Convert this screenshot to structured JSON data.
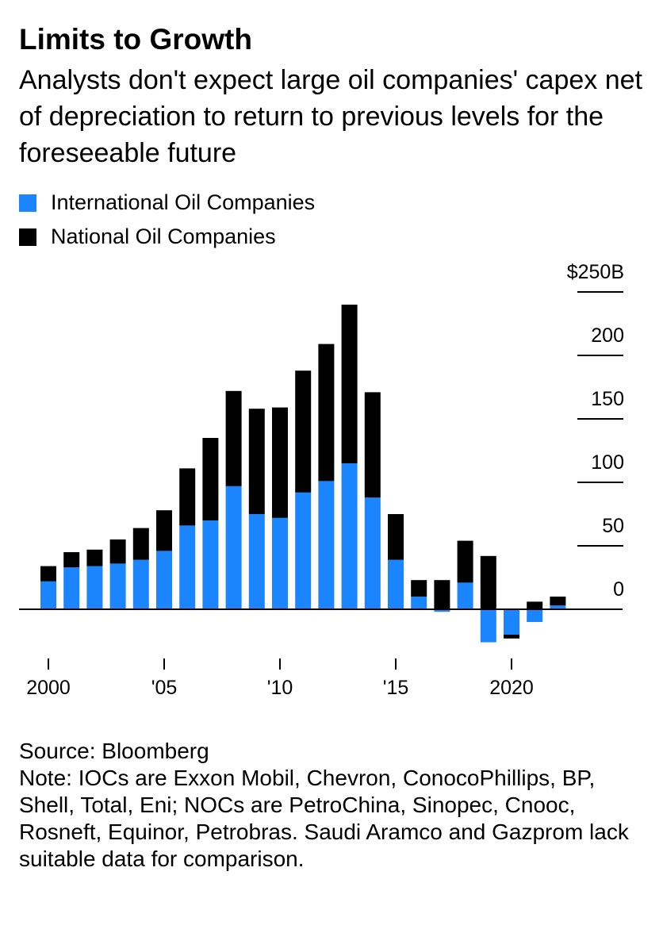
{
  "title": "Limits to Growth",
  "subtitle": "Analysts don't expect large oil companies' capex net of depreciation to return to previous levels for the foreseeable future",
  "legend": [
    {
      "label": "International Oil Companies",
      "color": "#1a85ff"
    },
    {
      "label": "National Oil Companies",
      "color": "#000000"
    }
  ],
  "footer": {
    "source": "Source: Bloomberg",
    "note": "Note: IOCs are Exxon Mobil, Chevron, ConocoPhillips, BP, Shell, Total, Eni; NOCs are PetroChina, Sinopec, Cnooc, Rosneft, Equinor, Petrobras. Saudi Aramco and Gazprom lack suitable data for comparison."
  },
  "chart_data": {
    "type": "bar",
    "stacked": true,
    "x": [
      2000,
      2001,
      2002,
      2003,
      2004,
      2005,
      2006,
      2007,
      2008,
      2009,
      2010,
      2011,
      2012,
      2013,
      2014,
      2015,
      2016,
      2017,
      2018,
      2019,
      2020,
      2021,
      2022
    ],
    "series": [
      {
        "name": "International Oil Companies",
        "color": "#1a85ff",
        "values": [
          22,
          33,
          34,
          36,
          39,
          46,
          66,
          70,
          97,
          75,
          72,
          92,
          101,
          115,
          88,
          39,
          10,
          -2,
          21,
          -26,
          -20,
          -10,
          3
        ]
      },
      {
        "name": "National Oil Companies",
        "color": "#000000",
        "values": [
          12,
          12,
          13,
          19,
          25,
          32,
          45,
          65,
          75,
          83,
          87,
          96,
          108,
          125,
          83,
          36,
          13,
          23,
          33,
          42,
          -3,
          6,
          7
        ]
      }
    ],
    "y_ticks": [
      0,
      50,
      100,
      150,
      200,
      250
    ],
    "y_tick_labels": [
      "0",
      "50",
      "100",
      "150",
      "200",
      "$250B"
    ],
    "x_ticks": [
      2000,
      2005,
      2010,
      2015,
      2020
    ],
    "x_tick_labels": [
      "2000",
      "'05",
      "'10",
      "'15",
      "2020"
    ],
    "ylim": [
      -30,
      250
    ],
    "xlabel": "",
    "ylabel": "",
    "legend_position": "top-left",
    "y_axis_side": "right",
    "grid": false
  }
}
